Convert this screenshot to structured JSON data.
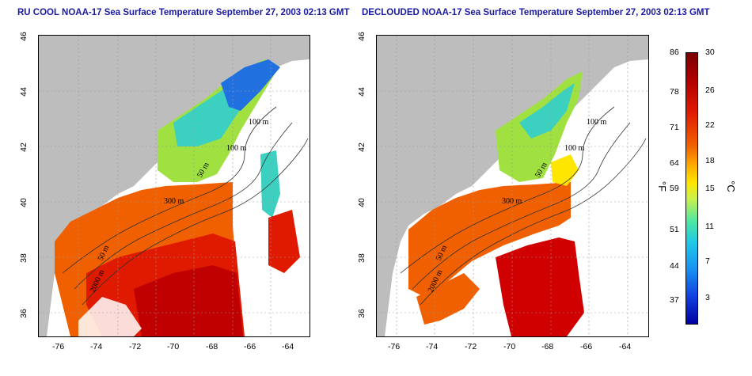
{
  "panels": [
    {
      "title": "RU COOL NOAA-17 Sea Surface Temperature September 27, 2003 02:13 GMT"
    },
    {
      "title": "DECLOUDED NOAA-17 Sea Surface Temperature September 27, 2003 02:13 GMT"
    }
  ],
  "axes": {
    "x_ticks": [
      "-76",
      "-74",
      "-72",
      "-70",
      "-68",
      "-66",
      "-64"
    ],
    "y_ticks": [
      "46",
      "44",
      "42",
      "40",
      "38",
      "36"
    ]
  },
  "contours": [
    "100 m",
    "100 m",
    "50 m",
    "300 m",
    "50 m",
    "2000 m"
  ],
  "colorbar": {
    "fahrenheit": [
      "86",
      "78",
      "71",
      "64",
      "59",
      "51",
      "44",
      "37"
    ],
    "celsius": [
      "30",
      "26",
      "22",
      "18",
      "15",
      "11",
      "7",
      "3"
    ],
    "unit_f": "°F",
    "unit_c": "°C"
  },
  "colors": {
    "land": "#bdbdbd",
    "warm": "#e01a00",
    "hot": "#b80000",
    "mid": "#f06000",
    "cool": "#ffe600",
    "cold": "#3cd0c0",
    "cloud": "#ffffff",
    "title": "#1a1aa0"
  }
}
